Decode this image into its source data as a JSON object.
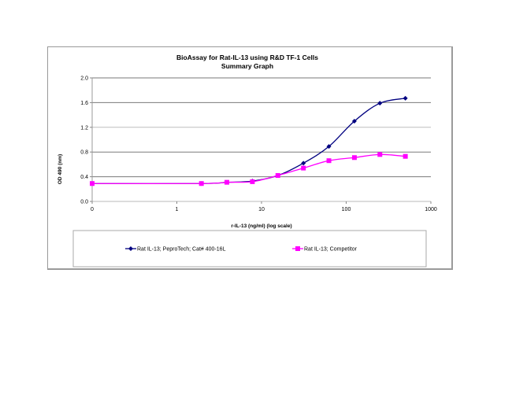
{
  "chart_data": {
    "type": "line",
    "title": "BioAssay for Rat-IL-13 using R&D TF-1 Cells",
    "subtitle": "Summary Graph",
    "xlabel": "r-IL-13 (ng/ml) (log scale)",
    "ylabel": "OD 490 (nm)",
    "x_scale": "log",
    "x_ticks": [
      "0",
      "1",
      "10",
      "100",
      "1000"
    ],
    "y_ticks": [
      "0.0",
      "0.4",
      "0.8",
      "1.2",
      "1.6",
      "2.0"
    ],
    "ylim": [
      0,
      2.0
    ],
    "grid": true,
    "legend_position": "bottom",
    "x": [
      0,
      1.95,
      3.9,
      7.8,
      15.6,
      31.25,
      62.5,
      125,
      250,
      500
    ],
    "series": [
      {
        "name": "Rat IL-13; PeproTech; Cat# 400-16L",
        "color": "#000080",
        "marker": "diamond",
        "values": [
          0.29,
          0.29,
          0.31,
          0.33,
          0.42,
          0.62,
          0.89,
          1.3,
          1.59,
          1.67
        ]
      },
      {
        "name": "Rat IL-13; Competitor",
        "color": "#FF00FF",
        "marker": "square",
        "values": [
          0.29,
          0.29,
          0.31,
          0.32,
          0.42,
          0.54,
          0.66,
          0.71,
          0.76,
          0.73
        ]
      }
    ]
  }
}
